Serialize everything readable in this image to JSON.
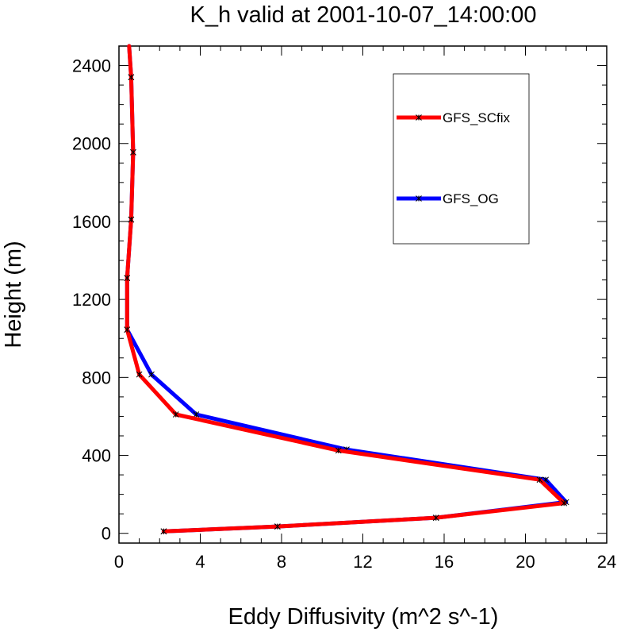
{
  "chart_data": {
    "type": "line",
    "title": "K_h valid at 2001-10-07_14:00:00",
    "xlabel": "Eddy Diffusivity (m^2 s^-1)",
    "ylabel": "Height (m)",
    "xlim": [
      0,
      24
    ],
    "ylim": [
      -50,
      2500
    ],
    "xticks": [
      0,
      4,
      8,
      12,
      16,
      20,
      24
    ],
    "xtick_labels": [
      "0",
      "4",
      "8",
      "12",
      "16",
      "20",
      "24"
    ],
    "yticks": [
      0,
      400,
      800,
      1200,
      1600,
      2000,
      2400
    ],
    "ytick_labels": [
      "0",
      "400",
      "800",
      "1200",
      "1600",
      "2000",
      "2400"
    ],
    "grid": false,
    "legend_position": "top-right",
    "series": [
      {
        "name": "GFS_OG",
        "color": "#0000ff",
        "points": [
          [
            2.2,
            10
          ],
          [
            7.8,
            35
          ],
          [
            15.6,
            80
          ],
          [
            22.0,
            160
          ],
          [
            21.0,
            275
          ],
          [
            11.2,
            430
          ],
          [
            3.8,
            610
          ],
          [
            1.6,
            815
          ],
          [
            0.4,
            1045
          ],
          [
            0.4,
            1310
          ],
          [
            0.6,
            1610
          ],
          [
            0.7,
            1955
          ],
          [
            0.6,
            2340
          ],
          [
            0.5,
            2500
          ]
        ]
      },
      {
        "name": "GFS_SCfix",
        "color": "#ff0000",
        "points": [
          [
            2.2,
            10
          ],
          [
            7.8,
            35
          ],
          [
            15.6,
            80
          ],
          [
            21.9,
            155
          ],
          [
            20.7,
            275
          ],
          [
            10.8,
            425
          ],
          [
            2.8,
            610
          ],
          [
            1.0,
            815
          ],
          [
            0.4,
            1045
          ],
          [
            0.4,
            1310
          ],
          [
            0.6,
            1610
          ],
          [
            0.7,
            1955
          ],
          [
            0.6,
            2340
          ],
          [
            0.5,
            2500
          ]
        ]
      }
    ]
  }
}
